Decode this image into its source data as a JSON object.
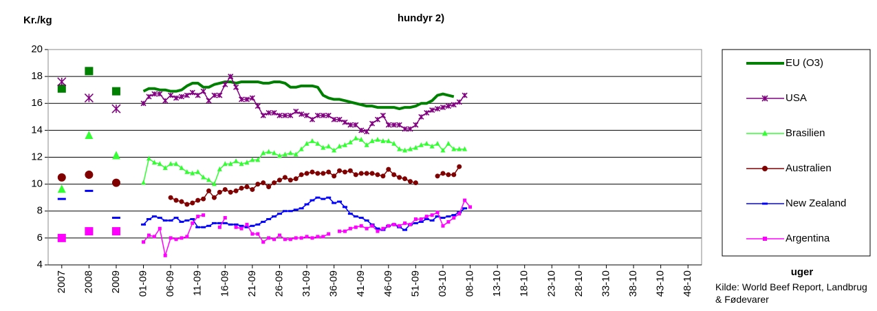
{
  "chart_data": {
    "type": "line",
    "title": "hundyr 2)",
    "y_label": "Kr./kg",
    "x_label": "uger",
    "source": "Kilde: World Beef Report, Landbrug & Fødevarer",
    "categories": [
      null,
      null,
      "2007",
      null,
      null,
      null,
      null,
      "2008",
      null,
      null,
      null,
      null,
      "2009",
      null,
      null,
      null,
      null,
      "01-09",
      null,
      null,
      null,
      null,
      "06-09",
      null,
      null,
      null,
      null,
      "11-09",
      null,
      null,
      null,
      null,
      "16-09",
      null,
      null,
      null,
      null,
      "21-09",
      null,
      null,
      null,
      null,
      "26-09",
      null,
      null,
      null,
      null,
      "31-09",
      null,
      null,
      null,
      null,
      "36-09",
      null,
      null,
      null,
      null,
      "41-09",
      null,
      null,
      null,
      null,
      "46-09",
      null,
      null,
      null,
      null,
      "51-09",
      null,
      null,
      null,
      null,
      "03-10",
      null,
      null,
      null,
      null,
      "08-10",
      null,
      null,
      null,
      null,
      "13-10",
      null,
      null,
      null,
      null,
      "18-10",
      null,
      null,
      null,
      null,
      "23-10",
      null,
      null,
      null,
      null,
      "28-10",
      null,
      null,
      null,
      null,
      "33-10",
      null,
      null,
      null,
      null,
      "38-10",
      null,
      null,
      null,
      null,
      "43-10",
      null,
      null,
      null,
      null,
      "48-10",
      null,
      null
    ],
    "ylim": [
      4,
      20
    ],
    "yticks": [
      4,
      6,
      8,
      10,
      12,
      14,
      16,
      18,
      20
    ],
    "grid": true,
    "series": [
      {
        "name": "EU (O3)",
        "color": "#008000",
        "width": 4,
        "marker": "square",
        "marker_on_line": false,
        "values": [
          null,
          null,
          17.1,
          null,
          null,
          null,
          null,
          18.4,
          null,
          null,
          null,
          null,
          16.9,
          null,
          null,
          null,
          null,
          16.9,
          17.1,
          17.1,
          17.0,
          17.0,
          16.9,
          16.9,
          17.0,
          17.3,
          17.5,
          17.5,
          17.2,
          17.2,
          17.4,
          17.5,
          17.6,
          17.6,
          17.5,
          17.6,
          17.6,
          17.6,
          17.6,
          17.5,
          17.5,
          17.6,
          17.6,
          17.5,
          17.2,
          17.2,
          17.3,
          17.3,
          17.3,
          17.2,
          16.6,
          16.4,
          16.3,
          16.3,
          16.2,
          16.1,
          16.0,
          15.9,
          15.8,
          15.8,
          15.7,
          15.7,
          15.7,
          15.7,
          15.6,
          15.7,
          15.7,
          15.8,
          16.0,
          16.0,
          16.2,
          16.6,
          16.7,
          16.6,
          16.5,
          null,
          null,
          null,
          null,
          null,
          null,
          null,
          null,
          null,
          null,
          null,
          null,
          null,
          null,
          null,
          null,
          null,
          null,
          null,
          null,
          null,
          null,
          null,
          null,
          null,
          null,
          null,
          null,
          null,
          null,
          null,
          null,
          null,
          null,
          null,
          null,
          null,
          null,
          null,
          null,
          null,
          null,
          null,
          null,
          null
        ]
      },
      {
        "name": "USA",
        "color": "#800080",
        "width": 1.5,
        "marker": "star",
        "marker_on_line": true,
        "values": [
          null,
          null,
          17.6,
          null,
          null,
          null,
          null,
          16.4,
          null,
          null,
          null,
          null,
          15.6,
          null,
          null,
          null,
          null,
          16.0,
          16.5,
          16.7,
          16.7,
          16.2,
          16.6,
          16.4,
          16.5,
          16.6,
          16.8,
          16.6,
          16.9,
          16.2,
          16.6,
          16.6,
          17.4,
          18.0,
          17.2,
          16.3,
          16.3,
          16.4,
          15.8,
          15.1,
          15.3,
          15.3,
          15.1,
          15.1,
          15.1,
          15.4,
          15.2,
          15.1,
          14.8,
          15.1,
          15.1,
          15.1,
          14.8,
          14.8,
          14.6,
          14.4,
          14.4,
          14.0,
          13.9,
          14.5,
          14.8,
          15.1,
          14.4,
          14.4,
          14.4,
          14.1,
          14.1,
          14.4,
          15.0,
          15.3,
          15.5,
          15.6,
          15.7,
          15.8,
          15.9,
          16.1,
          16.6,
          null,
          null,
          null,
          null,
          null,
          null,
          null,
          null,
          null,
          null,
          null,
          null,
          null,
          null,
          null,
          null,
          null,
          null,
          null,
          null,
          null,
          null,
          null,
          null,
          null,
          null,
          null,
          null,
          null,
          null,
          null,
          null,
          null,
          null,
          null,
          null,
          null,
          null,
          null,
          null,
          null,
          null,
          null
        ]
      },
      {
        "name": "Brasilien",
        "color": "#33ff33",
        "width": 1.5,
        "marker": "triangle",
        "marker_on_line": true,
        "values": [
          null,
          null,
          9.6,
          null,
          null,
          null,
          null,
          13.6,
          null,
          null,
          null,
          null,
          12.1,
          null,
          null,
          null,
          null,
          10.1,
          11.9,
          11.6,
          11.5,
          11.2,
          11.5,
          11.5,
          11.2,
          10.9,
          10.8,
          10.9,
          10.5,
          10.3,
          10.0,
          11.1,
          11.5,
          11.5,
          11.7,
          11.5,
          11.6,
          11.8,
          11.8,
          12.3,
          12.4,
          12.3,
          12.1,
          12.2,
          12.3,
          12.2,
          12.6,
          13.0,
          13.2,
          13.0,
          12.7,
          12.8,
          12.5,
          12.8,
          12.9,
          13.1,
          13.4,
          13.3,
          12.9,
          13.2,
          13.3,
          13.2,
          13.2,
          13.0,
          12.6,
          12.5,
          12.6,
          12.7,
          12.9,
          13.0,
          12.8,
          13.0,
          12.5,
          13.0,
          12.6,
          12.6,
          12.6,
          null,
          null,
          null,
          null,
          null,
          null,
          null,
          null,
          null,
          null,
          null,
          null,
          null,
          null,
          null,
          null,
          null,
          null,
          null,
          null,
          null,
          null,
          null,
          null,
          null,
          null,
          null,
          null,
          null,
          null,
          null,
          null,
          null,
          null,
          null,
          null,
          null,
          null,
          null,
          null,
          null,
          null,
          null
        ]
      },
      {
        "name": "Australien",
        "color": "#800000",
        "width": 1.5,
        "marker": "circle",
        "marker_on_line": true,
        "values": [
          null,
          null,
          10.5,
          null,
          null,
          null,
          null,
          10.7,
          null,
          null,
          null,
          null,
          10.1,
          null,
          null,
          null,
          null,
          null,
          null,
          null,
          null,
          null,
          9.0,
          8.8,
          8.7,
          8.5,
          8.6,
          8.8,
          8.9,
          9.5,
          9.0,
          9.4,
          9.6,
          9.4,
          9.5,
          9.7,
          9.8,
          9.6,
          10.0,
          10.1,
          9.8,
          10.1,
          10.3,
          10.5,
          10.3,
          10.4,
          10.7,
          10.8,
          10.9,
          10.8,
          10.8,
          10.9,
          10.6,
          11.0,
          10.9,
          11.0,
          10.7,
          10.8,
          10.8,
          10.8,
          10.7,
          10.6,
          11.1,
          10.7,
          10.5,
          10.4,
          10.2,
          10.1,
          null,
          null,
          null,
          10.6,
          10.8,
          10.7,
          10.7,
          11.3,
          null,
          null,
          null,
          null,
          null,
          null,
          null,
          null,
          null,
          null,
          null,
          null,
          null,
          null,
          null,
          null,
          null,
          null,
          null,
          null,
          null,
          null,
          null,
          null,
          null,
          null,
          null,
          null,
          null,
          null,
          null,
          null,
          null,
          null,
          null,
          null,
          null,
          null,
          null,
          null,
          null,
          null,
          null,
          null
        ]
      },
      {
        "name": "New Zealand",
        "color": "#0000ff",
        "width": 1.5,
        "marker": "dash",
        "marker_on_line": true,
        "values": [
          null,
          null,
          8.9,
          null,
          null,
          null,
          null,
          9.5,
          null,
          null,
          null,
          null,
          7.5,
          null,
          null,
          null,
          null,
          7.0,
          7.4,
          7.6,
          7.5,
          7.3,
          7.3,
          7.5,
          7.2,
          7.3,
          7.4,
          6.8,
          6.8,
          6.9,
          7.1,
          7.1,
          7.1,
          7.0,
          7.0,
          6.9,
          6.8,
          6.9,
          7.0,
          7.2,
          7.4,
          7.6,
          7.8,
          8.0,
          8.0,
          8.1,
          8.2,
          8.5,
          8.8,
          9.0,
          8.9,
          9.0,
          8.6,
          8.7,
          8.3,
          7.8,
          7.6,
          7.5,
          7.3,
          7.0,
          6.7,
          6.6,
          6.9,
          7.0,
          6.8,
          6.6,
          7.0,
          7.1,
          7.2,
          7.4,
          7.3,
          7.6,
          7.5,
          7.6,
          7.7,
          7.9,
          8.2,
          null,
          null,
          null,
          null,
          null,
          null,
          null,
          null,
          null,
          null,
          null,
          null,
          null,
          null,
          null,
          null,
          null,
          null,
          null,
          null,
          null,
          null,
          null,
          null,
          null,
          null,
          null,
          null,
          null,
          null,
          null,
          null,
          null,
          null,
          null,
          null,
          null,
          null,
          null,
          null,
          null,
          null,
          null
        ]
      },
      {
        "name": "Argentina",
        "color": "#ff00ff",
        "width": 1.5,
        "marker": "square",
        "marker_on_line": true,
        "values": [
          null,
          null,
          6.0,
          null,
          null,
          null,
          null,
          6.5,
          null,
          null,
          null,
          null,
          6.5,
          null,
          null,
          null,
          null,
          5.7,
          6.2,
          6.1,
          6.7,
          4.7,
          6.0,
          5.9,
          6.0,
          6.1,
          7.1,
          7.6,
          7.7,
          null,
          null,
          6.8,
          7.5,
          null,
          6.8,
          6.7,
          7.0,
          6.3,
          6.3,
          5.7,
          6.0,
          5.9,
          6.2,
          5.9,
          5.9,
          6.0,
          6.0,
          6.1,
          6.0,
          6.1,
          6.1,
          6.3,
          null,
          6.5,
          6.5,
          6.7,
          6.8,
          6.9,
          6.7,
          6.9,
          6.5,
          6.7,
          6.9,
          7.0,
          6.9,
          7.1,
          7.0,
          7.4,
          7.4,
          7.6,
          7.7,
          7.9,
          6.9,
          7.2,
          7.5,
          7.8,
          8.8,
          8.3,
          null,
          null,
          null,
          null,
          null,
          null,
          null,
          null,
          null,
          null,
          null,
          null,
          null,
          null,
          null,
          null,
          null,
          null,
          null,
          null,
          null,
          null,
          null,
          null,
          null,
          null,
          null,
          null,
          null,
          null,
          null,
          null,
          null,
          null,
          null,
          null,
          null,
          null,
          null,
          null,
          null,
          null
        ]
      }
    ]
  }
}
